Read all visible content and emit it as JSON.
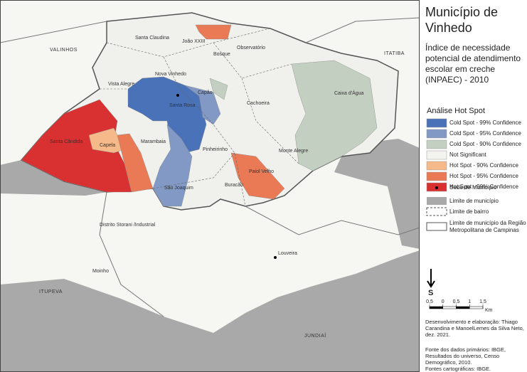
{
  "title_lines": [
    "Município de",
    "Vinhedo"
  ],
  "subtitle_lines": [
    "Índice de necessidade",
    "potencial de atendimento",
    "escolar em creche",
    "(INPAEC) - 2010"
  ],
  "legend": {
    "title": "Análise Hot Spot",
    "items": [
      {
        "label": "Cold Spot - 99% Confidence",
        "color": "#4a72b8"
      },
      {
        "label": "Cold Spot - 95% Confidence",
        "color": "#8199c4"
      },
      {
        "label": "Cold Spot - 90% Confidence",
        "color": "#c3cfc0"
      },
      {
        "label": "Not Significant",
        "color": "#f3f3ef"
      },
      {
        "label": "Hot Spot - 90% Confidence",
        "color": "#f5b98a"
      },
      {
        "label": "Hot Spot - 95% Confidence",
        "color": "#ea7a55"
      },
      {
        "label": "Hot Spot - 99% Confidence",
        "color": "#d93131"
      }
    ],
    "symbols": {
      "seat": "Sede de Município",
      "municipal_limit": "Limite de município",
      "district_limit": "Limite de bairro",
      "metro_limit": [
        "Limite de município da Região",
        "Metropolitana de Campinas"
      ]
    }
  },
  "north": "S",
  "scale": {
    "ticks": [
      {
        "value": -0.5,
        "label": "0,5"
      },
      0,
      {
        "value": 0.5,
        "label": "0,5"
      },
      1,
      {
        "value": 1.5,
        "label": "1,5"
      }
    ],
    "unit": "Km"
  },
  "map_labels": {
    "valinhos": "VALINHOS",
    "itatiba": "ITATIBA",
    "itupeva": "ITUPEVA",
    "jundiai": "JUNDIAÍ",
    "santa_claudina": "Santa Claudina",
    "joao_xxiii": "João XXIII",
    "observatorio": "Observatório",
    "bosque": "Bosque",
    "nova_vinhedo": "Nova Vinhedo",
    "vista_alegre": "Vista Alegre",
    "capao": "Capão",
    "santa_rosa": "Santa Rosa",
    "cachoeira": "Cachoeira",
    "caixa_dagua": "Caixa d'Água",
    "santa_candida": "Santa Cândida",
    "capela": "Capela",
    "marambaia": "Marambaia",
    "pinheirinho": "Pinheirinho",
    "monte_alegre": "Monte Alegre",
    "paiol_velho": "Paiol Velho",
    "sao_joaquim": "São Joaquim",
    "buracao": "Buracão",
    "distrito_storani": "Distrito Storani /Industrial",
    "louveira": "Louveira",
    "moinho": "Moinho"
  },
  "credits": {
    "authors": [
      "Desenvolvimento e elaboração: Thiago",
      "Carandina e ManoelLemes da Silva Neto,",
      "dez. 2021."
    ],
    "sources": [
      "Fonte dos dados primários: IBGE,",
      "Resultados do universo, Censo",
      "Demográfico, 2010.",
      "Fontes cartográficas: IBGE."
    ]
  }
}
